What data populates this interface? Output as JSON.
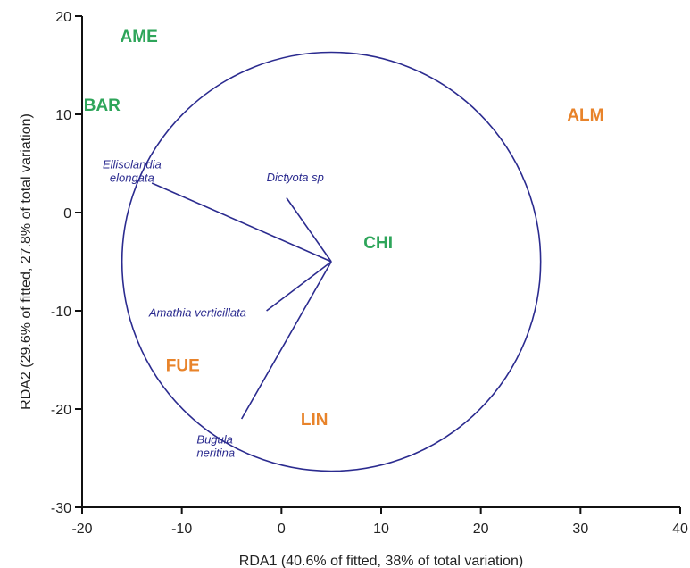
{
  "chart_data": {
    "type": "scatter",
    "title": "",
    "xlabel": "RDA1 (40.6% of fitted, 38% of total variation)",
    "ylabel": "RDA2 (29.6% of fitted, 27.8% of total variation)",
    "xlim": [
      -20,
      40
    ],
    "ylim": [
      -30,
      20
    ],
    "xticks": [
      -20,
      -10,
      0,
      10,
      20,
      30,
      40
    ],
    "yticks": [
      -30,
      -20,
      -10,
      0,
      10,
      20
    ],
    "grid": false,
    "legend": "none",
    "colors": {
      "green": "#2ea55a",
      "orange": "#e8832a",
      "vector": "#2b2b8f",
      "axis": "#111111"
    },
    "sites": [
      {
        "label": "AME",
        "x": -14.3,
        "y": 18,
        "color": "green"
      },
      {
        "label": "BAR",
        "x": -18.0,
        "y": 11,
        "color": "green"
      },
      {
        "label": "ALM",
        "x": 30.5,
        "y": 10,
        "color": "orange"
      },
      {
        "label": "CHI",
        "x": 9.7,
        "y": -3,
        "color": "green"
      },
      {
        "label": "FUE",
        "x": -9.9,
        "y": -15.5,
        "color": "orange"
      },
      {
        "label": "LIN",
        "x": 3.3,
        "y": -21,
        "color": "orange"
      }
    ],
    "circle": {
      "center": [
        5,
        -5
      ],
      "radius": 21
    },
    "vector_origin": [
      5,
      -5
    ],
    "species": [
      {
        "lines": [
          "Ellisolandia",
          "elongata"
        ],
        "end": [
          -13,
          3
        ],
        "label_at": [
          -15,
          4.5
        ],
        "anchor": "middle"
      },
      {
        "lines": [
          "Dictyota sp"
        ],
        "end": [
          0.5,
          1.5
        ],
        "label_at": [
          -1.5,
          3.2
        ],
        "anchor": "start"
      },
      {
        "lines": [
          "Amathia verticillata"
        ],
        "end": [
          -1.5,
          -10
        ],
        "label_at": [
          -13.3,
          -10.6
        ],
        "anchor": "start"
      },
      {
        "lines": [
          "Bugula",
          "neritina"
        ],
        "end": [
          -4,
          -21
        ],
        "label_at": [
          -8.5,
          -23.5
        ],
        "anchor": "start"
      }
    ]
  }
}
